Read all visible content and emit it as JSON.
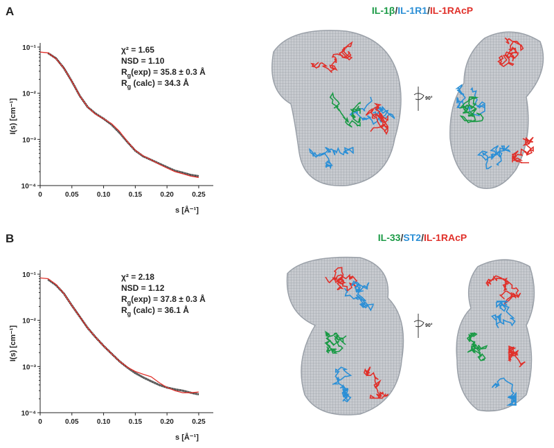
{
  "chart_data": [
    {
      "type": "line",
      "panel_label": "A",
      "xlabel": "s [Å⁻¹]",
      "ylabel": "I(s) [cm⁻¹]",
      "yscale": "log",
      "xlim": [
        0,
        0.273
      ],
      "ylim": [
        0.0001,
        0.1
      ],
      "xticks": [
        0,
        0.05,
        {
          "value": 0.1,
          "label": "0.10"
        },
        0.15,
        {
          "value": 0.2,
          "label": "0.20"
        },
        0.25
      ],
      "yticks": [
        {
          "value": 0.0001,
          "label": "10⁻⁴"
        },
        {
          "value": 0.001,
          "label": "10⁻³"
        },
        {
          "value": 0.01,
          "label": "10⁻²"
        },
        {
          "value": 0.1,
          "label": "10⁻¹"
        }
      ],
      "annotations": [
        [
          "χ² = 1.65"
        ],
        [
          "NSD = 1.10"
        ],
        [
          "R",
          "g",
          "(exp) = 35.8 ± 0.3 Å"
        ],
        [
          "R",
          "g",
          " (calc) = 34.3 Å"
        ]
      ],
      "x": [
        0,
        0.0125,
        0.025,
        0.0375,
        0.05,
        0.0625,
        0.075,
        0.0875,
        0.1,
        0.1125,
        0.125,
        0.1375,
        0.15,
        0.1625,
        0.175,
        0.1875,
        0.2,
        0.2125,
        0.225,
        0.2375,
        0.25
      ],
      "series": [
        {
          "color": "#111111",
          "values": [
            null,
            0.074,
            0.057,
            0.035,
            0.018,
            0.0088,
            0.005,
            0.0036,
            0.0028,
            0.0021,
            0.0014,
            0.00088,
            0.00057,
            0.00043,
            0.00036,
            0.0003,
            0.00025,
            0.00021,
            0.00019,
            0.00017,
            0.00016
          ]
        },
        {
          "color": "#e0302a",
          "values": [
            0.078,
            0.075,
            0.056,
            0.035,
            0.018,
            0.0088,
            0.005,
            0.0035,
            0.0028,
            0.0022,
            0.0015,
            0.0009,
            0.00058,
            0.00044,
            0.00036,
            0.00029,
            0.00024,
            0.0002,
            0.00018,
            0.00016,
            0.00015
          ]
        }
      ]
    },
    {
      "type": "line",
      "panel_label": "B",
      "xlabel": "s [Å⁻¹]",
      "ylabel": "I(s) [cm⁻¹]",
      "yscale": "log",
      "xlim": [
        0,
        0.273
      ],
      "ylim": [
        0.0001,
        0.1
      ],
      "xticks": [
        0,
        0.05,
        {
          "value": 0.1,
          "label": "0.10"
        },
        0.15,
        {
          "value": 0.2,
          "label": "0.20"
        },
        0.25
      ],
      "yticks": [
        {
          "value": 0.0001,
          "label": "10⁻⁴"
        },
        {
          "value": 0.001,
          "label": "10⁻³"
        },
        {
          "value": 0.01,
          "label": "10⁻²"
        },
        {
          "value": 0.1,
          "label": "10⁻¹"
        }
      ],
      "annotations": [
        [
          "χ² = 2.18"
        ],
        [
          "NSD = 1.12"
        ],
        [
          "R",
          "g",
          "(exp) = 37.8 ± 0.3 Å"
        ],
        [
          "R",
          "g",
          " (calc) = 36.1 Å"
        ]
      ],
      "x": [
        0,
        0.0125,
        0.025,
        0.0375,
        0.05,
        0.0625,
        0.075,
        0.0875,
        0.1,
        0.1125,
        0.125,
        0.1375,
        0.15,
        0.1625,
        0.175,
        0.1875,
        0.2,
        0.2125,
        0.225,
        0.2375,
        0.25
      ],
      "series": [
        {
          "color": "#111111",
          "values": [
            null,
            0.077,
            0.058,
            0.038,
            0.021,
            0.012,
            0.0068,
            0.0043,
            0.0028,
            0.0019,
            0.0013,
            0.00095,
            0.00072,
            0.00058,
            0.00048,
            0.0004,
            0.00035,
            0.00032,
            0.0003,
            0.00027,
            0.00025
          ]
        },
        {
          "color": "#e0302a",
          "values": [
            0.083,
            0.08,
            0.06,
            0.038,
            0.021,
            0.012,
            0.0068,
            0.0043,
            0.0028,
            0.0019,
            0.0013,
            0.00097,
            0.00078,
            0.00068,
            0.0006,
            0.00045,
            0.00035,
            0.0003,
            0.00027,
            0.00027,
            0.00028
          ]
        }
      ]
    }
  ],
  "structures": [
    {
      "title": [
        {
          "text": "IL-1β",
          "color": "#1a9a45"
        },
        {
          "text": "/",
          "color": "#333333"
        },
        {
          "text": "IL-1R1",
          "color": "#2b8fd6"
        },
        {
          "text": "/",
          "color": "#333333"
        },
        {
          "text": "IL-1RAcP",
          "color": "#e0302a"
        }
      ],
      "rotation_label": "90°"
    },
    {
      "title": [
        {
          "text": "IL-33",
          "color": "#1a9a45"
        },
        {
          "text": "/",
          "color": "#333333"
        },
        {
          "text": "ST2",
          "color": "#2b8fd6"
        },
        {
          "text": "/",
          "color": "#333333"
        },
        {
          "text": "IL-1RAcP",
          "color": "#e0302a"
        }
      ],
      "rotation_label": "90°"
    }
  ]
}
